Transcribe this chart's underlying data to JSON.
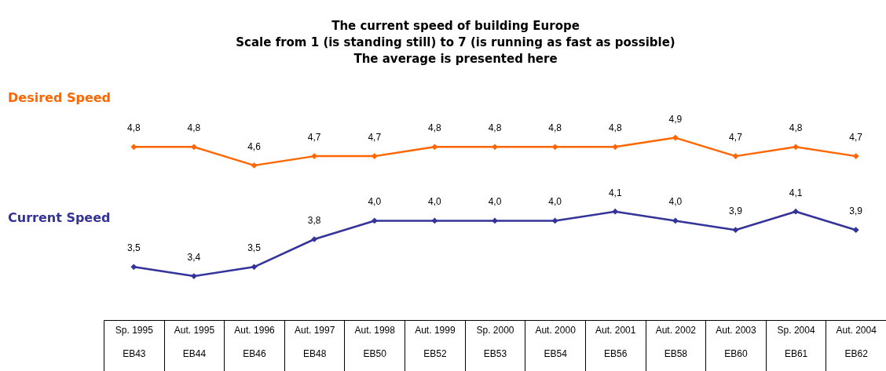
{
  "chart_data": {
    "type": "line",
    "title": [
      "The current speed of building Europe",
      "Scale from 1 (is standing still) to 7 (is running as fast as possible)",
      "The average is presented here"
    ],
    "categories": [
      "Sp. 1995\nEB43",
      "Aut. 1995\nEB44",
      "Aut. 1996\nEB46",
      "Aut. 1997\nEB48",
      "Aut. 1998\nEB50",
      "Aut. 1999\nEB52",
      "Sp. 2000\nEB53",
      "Aut. 2000\nEB54",
      "Aut. 2001\nEB56",
      "Aut. 2002\nEB58",
      "Aut. 2003\nEB60",
      "Sp. 2004\nEB61",
      "Aut. 2004\nEB62"
    ],
    "series": [
      {
        "name": "Desired Speed",
        "color": "#ff6600",
        "values": [
          4.8,
          4.8,
          4.6,
          4.7,
          4.7,
          4.8,
          4.8,
          4.8,
          4.8,
          4.9,
          4.7,
          4.8,
          4.7
        ],
        "value_labels": [
          "4,8",
          "4,8",
          "4,6",
          "4,7",
          "4,7",
          "4,8",
          "4,8",
          "4,8",
          "4,8",
          "4,9",
          "4,7",
          "4,8",
          "4,7"
        ]
      },
      {
        "name": "Current Speed",
        "color": "#333399",
        "values": [
          3.5,
          3.4,
          3.5,
          3.8,
          4.0,
          4.0,
          4.0,
          4.0,
          4.1,
          4.0,
          3.9,
          4.1,
          3.9
        ],
        "value_labels": [
          "3,5",
          "3,4",
          "3,5",
          "3,8",
          "4,0",
          "4,0",
          "4,0",
          "4,0",
          "4,1",
          "4,0",
          "3,9",
          "4,1",
          "3,9"
        ]
      }
    ],
    "marker": "diamond",
    "legend": false,
    "grid": false
  }
}
